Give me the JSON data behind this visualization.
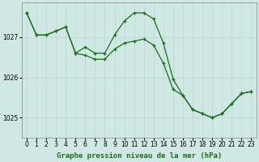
{
  "title": "Graphe pression niveau de la mer (hPa)",
  "background_color": "#cfe8e4",
  "grid_color": "#b8d8d2",
  "line_color": "#1a6e1a",
  "xlim": [
    -0.5,
    23.5
  ],
  "ylim": [
    1024.5,
    1027.85
  ],
  "yticks": [
    1025,
    1026,
    1027
  ],
  "xticks": [
    0,
    1,
    2,
    3,
    4,
    5,
    6,
    7,
    8,
    9,
    10,
    11,
    12,
    13,
    14,
    15,
    16,
    17,
    18,
    19,
    20,
    21,
    22,
    23
  ],
  "series1_x": [
    0,
    1,
    2,
    3,
    4,
    5,
    6,
    7,
    8,
    9,
    10,
    11,
    12,
    13,
    14,
    15,
    16,
    17,
    18,
    19,
    20,
    21,
    22,
    23
  ],
  "series1_y": [
    1027.6,
    1027.05,
    1027.05,
    1027.15,
    1027.25,
    1026.6,
    1026.75,
    1026.6,
    1026.6,
    1027.05,
    1027.4,
    1027.6,
    1027.6,
    1027.45,
    1026.85,
    1025.95,
    1025.55,
    1025.2,
    1025.1,
    1025.0,
    1025.1,
    1025.35,
    1025.6,
    1025.65
  ],
  "series2_x": [
    0,
    1,
    2,
    3,
    4,
    5,
    6,
    7,
    8,
    9,
    10,
    11,
    12,
    13,
    14,
    15,
    16,
    17,
    18,
    19,
    20,
    21,
    22,
    23
  ],
  "series2_y": [
    1027.6,
    1027.05,
    1027.05,
    1027.15,
    1027.25,
    1026.6,
    1026.55,
    1026.45,
    1026.45,
    1026.7,
    1026.85,
    1026.9,
    1026.95,
    1026.8,
    1026.35,
    1025.7,
    1025.55,
    1025.2,
    1025.1,
    1025.0,
    1025.1,
    1025.35,
    1025.6,
    1025.65
  ],
  "tick_fontsize": 5.5,
  "title_fontsize": 6.5
}
